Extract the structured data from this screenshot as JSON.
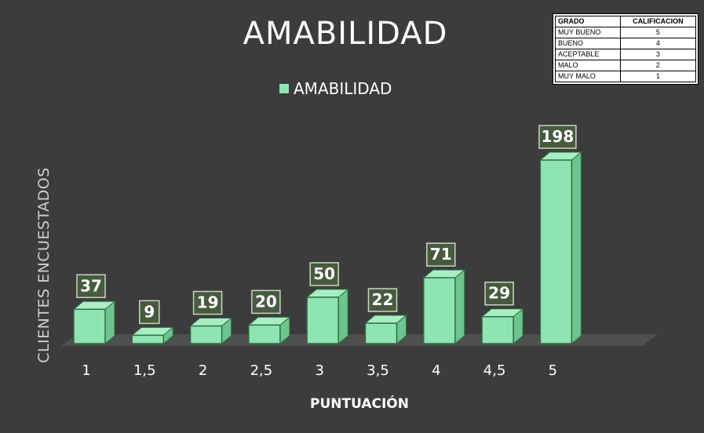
{
  "chart_data": {
    "type": "bar",
    "title": "AMABILIDAD",
    "xlabel": "PUNTUACIÓN",
    "ylabel": "CLIENTES ENCUESTADOS",
    "categories": [
      "1",
      "1,5",
      "2",
      "2,5",
      "3",
      "3,5",
      "4",
      "4,5",
      "5"
    ],
    "series": [
      {
        "name": "AMABILIDAD",
        "values": [
          37,
          9,
          19,
          20,
          50,
          22,
          71,
          29,
          198
        ]
      }
    ],
    "ylim": [
      0,
      198
    ],
    "legend": "top-center",
    "grid": false,
    "bar_style": "3d",
    "colors": {
      "bar": "#8ee5b1",
      "bar_side": "#6cc48f",
      "background": "#3c3c3c"
    }
  },
  "grade_table": {
    "headers": [
      "GRADO",
      "CALIFICACION"
    ],
    "rows": [
      [
        "MUY BUENO",
        "5"
      ],
      [
        "BUENO",
        "4"
      ],
      [
        "ACEPTABLE",
        "3"
      ],
      [
        "MALO",
        "2"
      ],
      [
        "MUY MALO",
        "1"
      ]
    ]
  }
}
